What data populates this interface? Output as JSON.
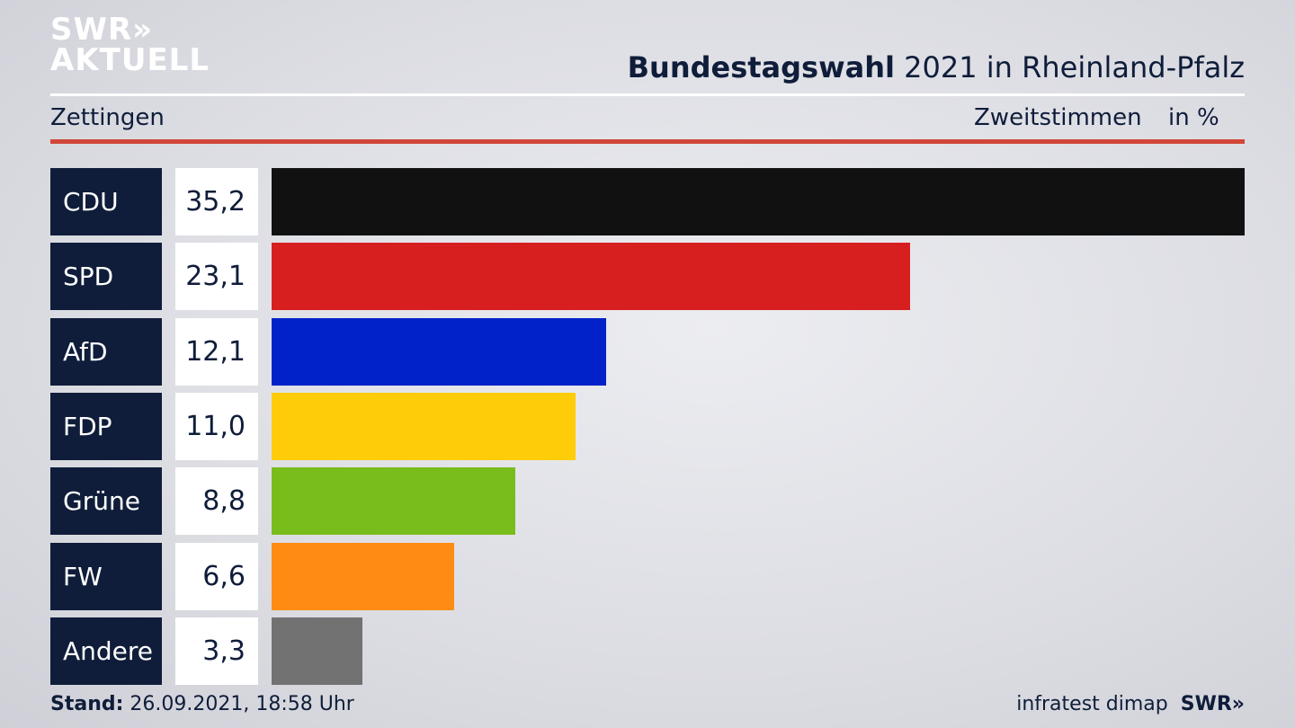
{
  "logo": {
    "line1": "SWR",
    "chevrons": "»",
    "line2": "AKTUELL"
  },
  "header": {
    "title_bold": "Bundestagswahl",
    "title_rest": " 2021 in Rheinland-Pfalz",
    "location": "Zettingen",
    "metric": "Zweitstimmen",
    "unit": "in %"
  },
  "footer": {
    "stand_label": "Stand:",
    "stand_value": " 26.09.2021, 18:58 Uhr",
    "source": "infratest dimap",
    "brand": "SWR»"
  },
  "chart_data": {
    "type": "bar",
    "orientation": "horizontal",
    "categories": [
      "CDU",
      "SPD",
      "AfD",
      "FDP",
      "Grüne",
      "FW",
      "Andere"
    ],
    "values": [
      35.2,
      23.1,
      12.1,
      11.0,
      8.8,
      6.6,
      3.3
    ],
    "value_labels": [
      "35,2",
      "23,1",
      "12,1",
      "11,0",
      "8,8",
      "6,6",
      "3,3"
    ],
    "colors": [
      "#111111",
      "#d81f20",
      "#0022c8",
      "#ffcc0a",
      "#78bd1c",
      "#fe8c14",
      "#727272"
    ],
    "grid": false,
    "legend": "none"
  }
}
